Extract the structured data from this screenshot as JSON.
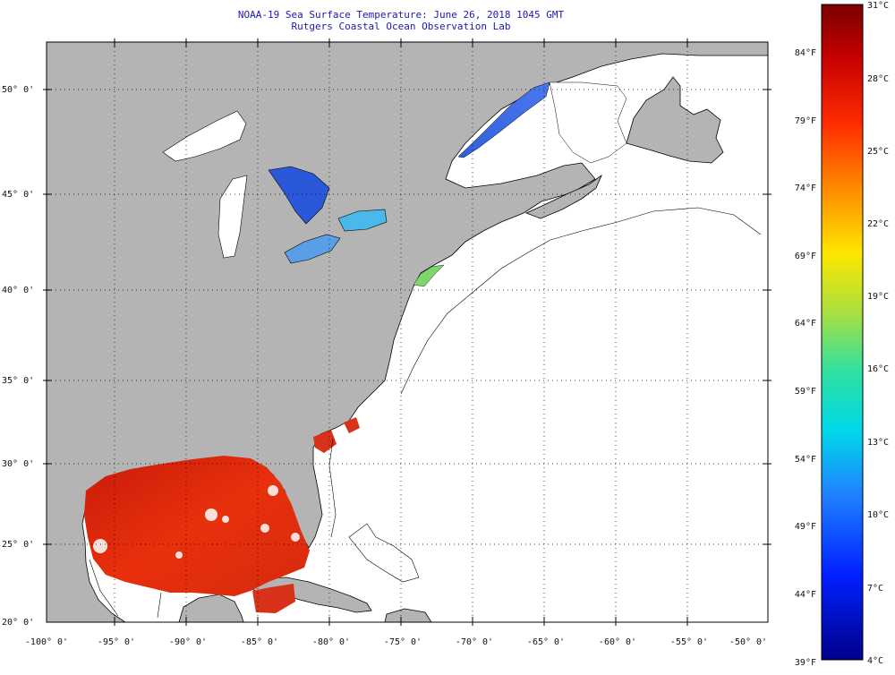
{
  "title": {
    "line1": "NOAA-19 Sea Surface Temperature:  June 26, 2018 1045 GMT",
    "line2": "Rutgers Coastal Ocean Observation Lab"
  },
  "axes": {
    "lon_labels": [
      "-100° 0'",
      "-95° 0'",
      "-90° 0'",
      "-85° 0'",
      "-80° 0'",
      "-75° 0'",
      "-70° 0'",
      "-65° 0'",
      "-60° 0'",
      "-55° 0'",
      "-50° 0'"
    ],
    "lat_labels": [
      "50° 0'",
      "45° 0'",
      "40° 0'",
      "35° 0'",
      "30° 0'",
      "25° 0'",
      "20° 0'"
    ]
  },
  "colorbar": {
    "celsius": [
      "31°C",
      "28°C",
      "25°C",
      "22°C",
      "19°C",
      "16°C",
      "13°C",
      "10°C",
      "7°C",
      "4°C"
    ],
    "fahrenheit": [
      "84°F",
      "79°F",
      "74°F",
      "69°F",
      "64°F",
      "59°F",
      "54°F",
      "49°F",
      "44°F",
      "39°F"
    ]
  },
  "colors": {
    "land": "#b4b4b4",
    "ocean": "#ffffff",
    "title": "#1a1ab0",
    "sst_warm": "#d42a10",
    "sst_cool": "#2a5ad8"
  }
}
